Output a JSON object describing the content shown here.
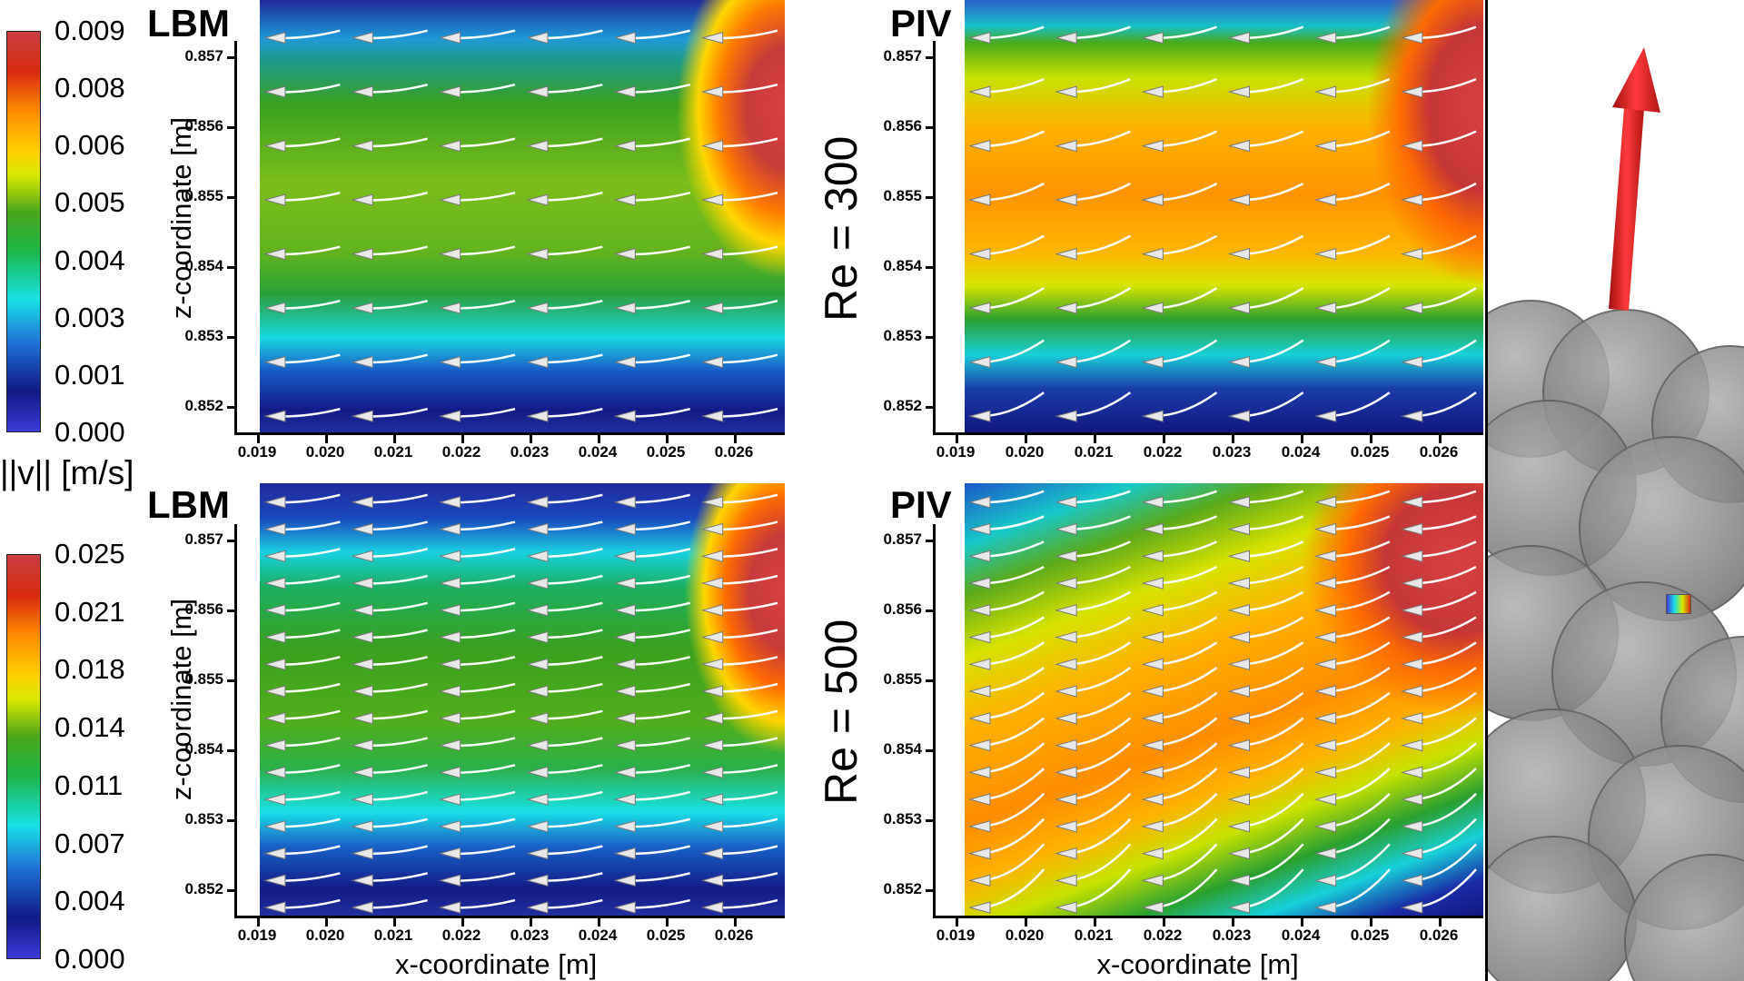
{
  "colorbar_title": "||v|| [m/s]",
  "colorbar_top": {
    "ticks": [
      "0.009",
      "0.008",
      "0.006",
      "0.005",
      "0.004",
      "0.003",
      "0.001",
      "0.000"
    ]
  },
  "colorbar_bottom": {
    "ticks": [
      "0.025",
      "0.021",
      "0.018",
      "0.014",
      "0.011",
      "0.007",
      "0.004",
      "0.000"
    ]
  },
  "re_labels": [
    "Re = 300",
    "Re = 500"
  ],
  "panels": [
    {
      "label": "LBM",
      "ylabel": "z-coordinate [m]"
    },
    {
      "label": "PIV"
    },
    {
      "label": "LBM",
      "ylabel": "z-coordinate [m]"
    },
    {
      "label": "PIV"
    }
  ],
  "xlabel": "x-coordinate [m]",
  "x_ticks": [
    "0.019",
    "0.020",
    "0.021",
    "0.022",
    "0.023",
    "0.024",
    "0.025",
    "0.026"
  ],
  "z_ticks": [
    "0.857",
    "0.856",
    "0.855",
    "0.854",
    "0.853",
    "0.852"
  ],
  "flow_arrow_color": "#e21b1b",
  "chart_data": {
    "type": "heatmap",
    "description_fields": "velocity magnitude contour with streamlines",
    "x": [
      0.019,
      0.02,
      0.021,
      0.022,
      0.023,
      0.024,
      0.025,
      0.026
    ],
    "z": [
      0.852,
      0.853,
      0.854,
      0.855,
      0.856,
      0.857
    ],
    "xlabel": "x-coordinate [m]",
    "ylabel": "z-coordinate [m]",
    "colorbar_label": "||v|| [m/s]",
    "panels": [
      {
        "method": "LBM",
        "Re": 300,
        "vmin": 0.0,
        "vmax": 0.009
      },
      {
        "method": "PIV",
        "Re": 300,
        "vmin": 0.0,
        "vmax": 0.009
      },
      {
        "method": "LBM",
        "Re": 500,
        "vmin": 0.0,
        "vmax": 0.025
      },
      {
        "method": "PIV",
        "Re": 500,
        "vmin": 0.0,
        "vmax": 0.025
      }
    ]
  }
}
